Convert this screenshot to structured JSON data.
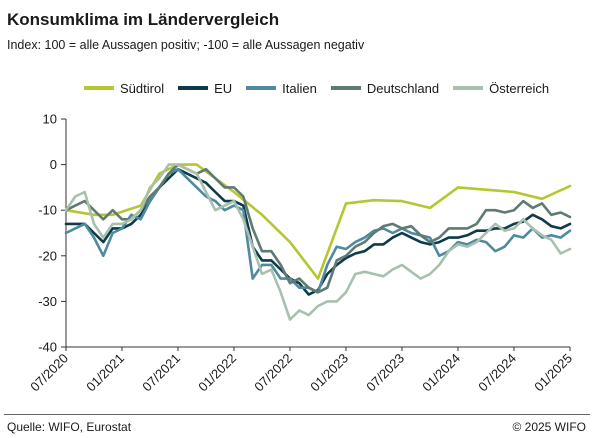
{
  "header": {
    "title": "Konsumklima im Ländervergleich",
    "subtitle": "Index: 100 = alle Aussagen positiv; -100 =  alle Aussagen negativ"
  },
  "footer": {
    "source": "Quelle: WIFO, Eurostat",
    "copyright": "© 2025 WIFO"
  },
  "chart_data": {
    "type": "line",
    "title": "Konsumklima im Ländervergleich",
    "subtitle": "Index: 100 = alle Aussagen positiv; -100 =  alle Aussagen negativ",
    "x_tick_labels": [
      "07/2020",
      "01/2021",
      "07/2021",
      "01/2022",
      "07/2022",
      "01/2023",
      "07/2023",
      "01/2024",
      "07/2024",
      "01/2025"
    ],
    "y_tick_labels": [
      "10",
      "0",
      "-10",
      "-20",
      "-30",
      "-40"
    ],
    "y_ticks": [
      10,
      0,
      -10,
      -20,
      -30,
      -40
    ],
    "ylim": [
      -40,
      10
    ],
    "x_range": [
      "2020-07",
      "2025-01"
    ],
    "grid": false,
    "legend_position": "top",
    "series": [
      {
        "name": "Südtirol",
        "color": "#b5c730",
        "points": [
          [
            "2020-07",
            -10
          ],
          [
            "2020-10",
            -11
          ],
          [
            "2020-12",
            -11
          ],
          [
            "2021-03",
            -9
          ],
          [
            "2021-05",
            -2
          ],
          [
            "2021-07",
            0
          ],
          [
            "2021-09",
            0
          ],
          [
            "2021-11",
            -3
          ],
          [
            "2022-01",
            -6
          ],
          [
            "2022-04",
            -11
          ],
          [
            "2022-07",
            -17
          ],
          [
            "2022-10",
            -25
          ],
          [
            "2023-01",
            -8.5
          ],
          [
            "2023-04",
            -7.8
          ],
          [
            "2023-07",
            -8
          ],
          [
            "2023-10",
            -9.5
          ],
          [
            "2024-01",
            -5
          ],
          [
            "2024-04",
            -5.5
          ],
          [
            "2024-07",
            -6
          ],
          [
            "2024-10",
            -7.5
          ],
          [
            "2025-01",
            -4.7
          ]
        ]
      },
      {
        "name": "EU",
        "color": "#0f3a4a",
        "points": [
          [
            "2020-07",
            -13
          ],
          [
            "2020-08",
            -13
          ],
          [
            "2020-09",
            -13
          ],
          [
            "2020-10",
            -15
          ],
          [
            "2020-11",
            -17
          ],
          [
            "2020-12",
            -14
          ],
          [
            "2021-01",
            -14
          ],
          [
            "2021-02",
            -13
          ],
          [
            "2021-03",
            -11
          ],
          [
            "2021-04",
            -8
          ],
          [
            "2021-05",
            -5
          ],
          [
            "2021-06",
            -3
          ],
          [
            "2021-07",
            -1
          ],
          [
            "2021-08",
            -2
          ],
          [
            "2021-09",
            -3
          ],
          [
            "2021-10",
            -4
          ],
          [
            "2021-11",
            -6
          ],
          [
            "2021-12",
            -8
          ],
          [
            "2022-01",
            -8
          ],
          [
            "2022-02",
            -9
          ],
          [
            "2022-03",
            -18
          ],
          [
            "2022-04",
            -21
          ],
          [
            "2022-05",
            -21
          ],
          [
            "2022-06",
            -23
          ],
          [
            "2022-07",
            -25
          ],
          [
            "2022-08",
            -26
          ],
          [
            "2022-09",
            -28.5
          ],
          [
            "2022-10",
            -27.5
          ],
          [
            "2022-11",
            -24
          ],
          [
            "2022-12",
            -22
          ],
          [
            "2023-01",
            -20.5
          ],
          [
            "2023-02",
            -19.5
          ],
          [
            "2023-03",
            -19
          ],
          [
            "2023-04",
            -17.5
          ],
          [
            "2023-05",
            -17.5
          ],
          [
            "2023-06",
            -16
          ],
          [
            "2023-07",
            -15
          ],
          [
            "2023-08",
            -16
          ],
          [
            "2023-09",
            -17
          ],
          [
            "2023-10",
            -17.5
          ],
          [
            "2023-11",
            -17
          ],
          [
            "2023-12",
            -16
          ],
          [
            "2024-01",
            -16
          ],
          [
            "2024-02",
            -15.5
          ],
          [
            "2024-03",
            -14.5
          ],
          [
            "2024-04",
            -14.5
          ],
          [
            "2024-05",
            -14
          ],
          [
            "2024-06",
            -14
          ],
          [
            "2024-07",
            -13
          ],
          [
            "2024-08",
            -12.5
          ],
          [
            "2024-09",
            -11
          ],
          [
            "2024-10",
            -12
          ],
          [
            "2024-11",
            -13.5
          ],
          [
            "2024-12",
            -14
          ],
          [
            "2025-01",
            -13
          ]
        ]
      },
      {
        "name": "Italien",
        "color": "#4f8aa1",
        "points": [
          [
            "2020-07",
            -15
          ],
          [
            "2020-08",
            -14
          ],
          [
            "2020-09",
            -13
          ],
          [
            "2020-10",
            -16
          ],
          [
            "2020-11",
            -20
          ],
          [
            "2020-12",
            -15
          ],
          [
            "2021-01",
            -14
          ],
          [
            "2021-02",
            -11
          ],
          [
            "2021-03",
            -12
          ],
          [
            "2021-04",
            -8
          ],
          [
            "2021-05",
            -5
          ],
          [
            "2021-06",
            -2
          ],
          [
            "2021-07",
            -1
          ],
          [
            "2021-08",
            -3
          ],
          [
            "2021-09",
            -5
          ],
          [
            "2021-10",
            -7
          ],
          [
            "2021-11",
            -8
          ],
          [
            "2021-12",
            -10
          ],
          [
            "2022-01",
            -9
          ],
          [
            "2022-02",
            -10
          ],
          [
            "2022-03",
            -25
          ],
          [
            "2022-04",
            -22
          ],
          [
            "2022-05",
            -22
          ],
          [
            "2022-06",
            -25
          ],
          [
            "2022-07",
            -25
          ],
          [
            "2022-08",
            -27
          ],
          [
            "2022-09",
            -27
          ],
          [
            "2022-10",
            -28
          ],
          [
            "2022-11",
            -22
          ],
          [
            "2022-12",
            -18
          ],
          [
            "2023-01",
            -18.5
          ],
          [
            "2023-02",
            -17
          ],
          [
            "2023-03",
            -16
          ],
          [
            "2023-04",
            -14.5
          ],
          [
            "2023-05",
            -14
          ],
          [
            "2023-06",
            -15
          ],
          [
            "2023-07",
            -14
          ],
          [
            "2023-08",
            -15
          ],
          [
            "2023-09",
            -15.5
          ],
          [
            "2023-10",
            -16
          ],
          [
            "2023-11",
            -20
          ],
          [
            "2023-12",
            -19
          ],
          [
            "2024-01",
            -17
          ],
          [
            "2024-02",
            -17.5
          ],
          [
            "2024-03",
            -16.5
          ],
          [
            "2024-04",
            -17
          ],
          [
            "2024-05",
            -19
          ],
          [
            "2024-06",
            -18
          ],
          [
            "2024-07",
            -15.5
          ],
          [
            "2024-08",
            -16
          ],
          [
            "2024-09",
            -14
          ],
          [
            "2024-10",
            -16
          ],
          [
            "2024-11",
            -15.5
          ],
          [
            "2024-12",
            -16
          ],
          [
            "2025-01",
            -14.5
          ]
        ]
      },
      {
        "name": "Deutschland",
        "color": "#5e7a72",
        "points": [
          [
            "2020-07",
            -10
          ],
          [
            "2020-08",
            -9
          ],
          [
            "2020-09",
            -8
          ],
          [
            "2020-10",
            -10
          ],
          [
            "2020-11",
            -12
          ],
          [
            "2020-12",
            -10
          ],
          [
            "2021-01",
            -12
          ],
          [
            "2021-02",
            -12
          ],
          [
            "2021-03",
            -10
          ],
          [
            "2021-04",
            -7
          ],
          [
            "2021-05",
            -5
          ],
          [
            "2021-06",
            -2
          ],
          [
            "2021-07",
            0
          ],
          [
            "2021-08",
            -1
          ],
          [
            "2021-09",
            -2
          ],
          [
            "2021-10",
            -1
          ],
          [
            "2021-11",
            -3
          ],
          [
            "2021-12",
            -5
          ],
          [
            "2022-01",
            -5
          ],
          [
            "2022-02",
            -7
          ],
          [
            "2022-03",
            -14
          ],
          [
            "2022-04",
            -19
          ],
          [
            "2022-05",
            -19
          ],
          [
            "2022-06",
            -22
          ],
          [
            "2022-07",
            -26
          ],
          [
            "2022-08",
            -25
          ],
          [
            "2022-09",
            -27
          ],
          [
            "2022-10",
            -28
          ],
          [
            "2022-11",
            -27
          ],
          [
            "2022-12",
            -21
          ],
          [
            "2023-01",
            -20
          ],
          [
            "2023-02",
            -18
          ],
          [
            "2023-03",
            -17
          ],
          [
            "2023-04",
            -15
          ],
          [
            "2023-05",
            -13.5
          ],
          [
            "2023-06",
            -13
          ],
          [
            "2023-07",
            -14
          ],
          [
            "2023-08",
            -13.5
          ],
          [
            "2023-09",
            -15.5
          ],
          [
            "2023-10",
            -17
          ],
          [
            "2023-11",
            -16
          ],
          [
            "2023-12",
            -14
          ],
          [
            "2024-01",
            -14
          ],
          [
            "2024-02",
            -14
          ],
          [
            "2024-03",
            -13
          ],
          [
            "2024-04",
            -10
          ],
          [
            "2024-05",
            -10
          ],
          [
            "2024-06",
            -10.5
          ],
          [
            "2024-07",
            -10
          ],
          [
            "2024-08",
            -8
          ],
          [
            "2024-09",
            -9.5
          ],
          [
            "2024-10",
            -8.5
          ],
          [
            "2024-11",
            -11
          ],
          [
            "2024-12",
            -10.5
          ],
          [
            "2025-01",
            -11.5
          ]
        ]
      },
      {
        "name": "Österreich",
        "color": "#a8c0ae",
        "points": [
          [
            "2020-07",
            -10
          ],
          [
            "2020-08",
            -7
          ],
          [
            "2020-09",
            -6
          ],
          [
            "2020-10",
            -13
          ],
          [
            "2020-11",
            -16
          ],
          [
            "2020-12",
            -13
          ],
          [
            "2021-01",
            -13
          ],
          [
            "2021-02",
            -12
          ],
          [
            "2021-03",
            -10
          ],
          [
            "2021-04",
            -5
          ],
          [
            "2021-05",
            -3
          ],
          [
            "2021-06",
            0
          ],
          [
            "2021-07",
            0
          ],
          [
            "2021-08",
            -1
          ],
          [
            "2021-09",
            -2
          ],
          [
            "2021-10",
            -6
          ],
          [
            "2021-11",
            -10
          ],
          [
            "2021-12",
            -9
          ],
          [
            "2022-01",
            -8
          ],
          [
            "2022-02",
            -12
          ],
          [
            "2022-03",
            -18
          ],
          [
            "2022-04",
            -24
          ],
          [
            "2022-05",
            -23
          ],
          [
            "2022-06",
            -28
          ],
          [
            "2022-07",
            -34
          ],
          [
            "2022-08",
            -32
          ],
          [
            "2022-09",
            -33
          ],
          [
            "2022-10",
            -31
          ],
          [
            "2022-11",
            -30
          ],
          [
            "2022-12",
            -30
          ],
          [
            "2023-01",
            -28
          ],
          [
            "2023-02",
            -24
          ],
          [
            "2023-03",
            -23.5
          ],
          [
            "2023-04",
            -24
          ],
          [
            "2023-05",
            -24.5
          ],
          [
            "2023-06",
            -23
          ],
          [
            "2023-07",
            -22
          ],
          [
            "2023-08",
            -23.5
          ],
          [
            "2023-09",
            -25
          ],
          [
            "2023-10",
            -24
          ],
          [
            "2023-11",
            -22
          ],
          [
            "2023-12",
            -19
          ],
          [
            "2024-01",
            -17.5
          ],
          [
            "2024-02",
            -18
          ],
          [
            "2024-03",
            -17
          ],
          [
            "2024-04",
            -15
          ],
          [
            "2024-05",
            -13
          ],
          [
            "2024-06",
            -14.5
          ],
          [
            "2024-07",
            -14
          ],
          [
            "2024-08",
            -12
          ],
          [
            "2024-09",
            -14
          ],
          [
            "2024-10",
            -15.5
          ],
          [
            "2024-11",
            -16.5
          ],
          [
            "2024-12",
            -19.5
          ],
          [
            "2025-01",
            -18.5
          ]
        ]
      }
    ]
  }
}
